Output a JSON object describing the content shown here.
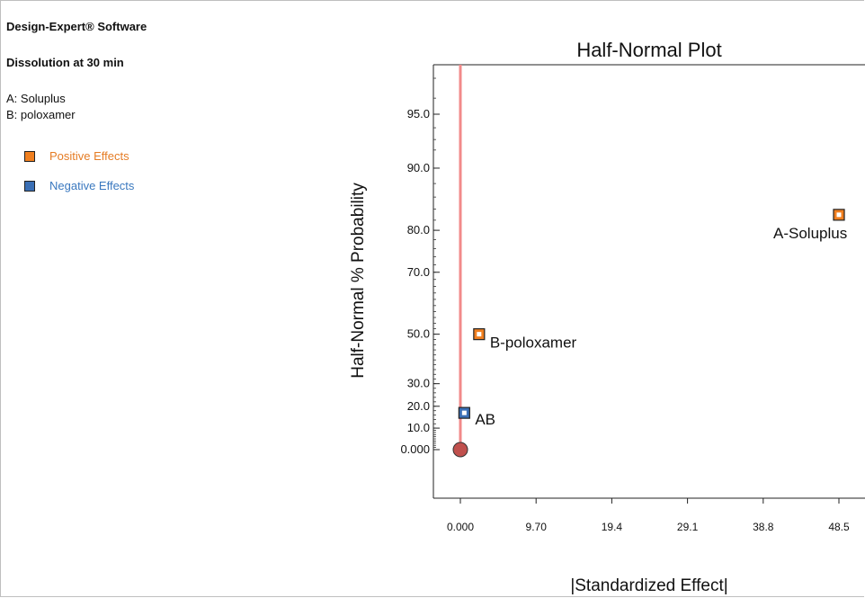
{
  "sidebar": {
    "software": "Design-Expert® Software",
    "response": "Dissolution at 30 min",
    "factors": [
      "A: Soluplus",
      "B: poloxamer"
    ],
    "legend": [
      {
        "label": "Positive Effects",
        "color": "#f07f1f",
        "text_color": "#e57c24"
      },
      {
        "label": "Negative Effects",
        "color": "#3a6fb5",
        "text_color": "#3a78bf"
      }
    ]
  },
  "chart_data": {
    "type": "scatter",
    "title": "Half-Normal Plot",
    "xlabel": "|Standardized Effect|",
    "ylabel": "Half-Normal % Probability",
    "xlim": [
      -3.2,
      50
    ],
    "x_ticks": [
      "0.000",
      "9.70",
      "19.4",
      "29.1",
      "38.8",
      "48.5"
    ],
    "x_tick_values": [
      0,
      9.7,
      19.4,
      29.1,
      38.8,
      48.5
    ],
    "y_ticks": [
      "0.000",
      "10.0",
      "20.0",
      "30.0",
      "50.0",
      "70.0",
      "80.0",
      "90.0",
      "95.0"
    ],
    "y_tick_values": [
      0,
      10,
      20,
      30,
      50,
      70,
      80,
      90,
      95
    ],
    "points": [
      {
        "label": "A-Soluplus",
        "x": 48.5,
        "y": 83,
        "effect": "positive"
      },
      {
        "label": "B-poloxamer",
        "x": 2.4,
        "y": 50,
        "effect": "positive"
      },
      {
        "label": "AB",
        "x": 0.5,
        "y": 17,
        "effect": "negative"
      }
    ],
    "error_points": [
      {
        "x": 0,
        "y": 0
      }
    ],
    "reference_line_x": 0,
    "colors": {
      "line": "#f28a8a",
      "error_point": "#c0504d",
      "positive": "#f07f1f",
      "negative": "#3a6fb5"
    }
  }
}
